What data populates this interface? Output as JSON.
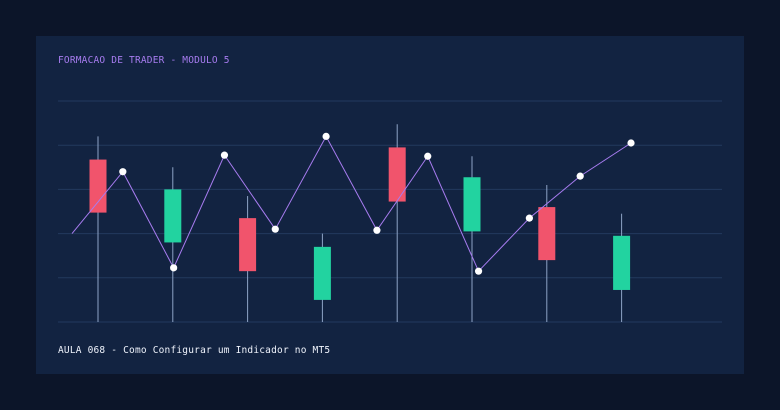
{
  "header": {
    "title": "FORMACAO DE TRADER - MODULO 5"
  },
  "footer": {
    "caption": "AULA 068 - Como Configurar um Indicador no MT5"
  },
  "colors": {
    "background": "#0c1529",
    "card": "#122341",
    "grid": "#233a5e",
    "wick": "#8ea3c6",
    "bullish": "#22d3a0",
    "bearish": "#f1546c",
    "indicator_line": "#a77cf0",
    "indicator_point": "#ffffff",
    "header_text": "#a77cf0",
    "footer_text": "#eef2fb"
  },
  "chart_data": {
    "type": "candlestick",
    "grid": true,
    "gridlines": 6,
    "ylim": [
      0,
      10
    ],
    "candles": [
      {
        "direction": "bearish",
        "open": 7.35,
        "close": 4.95,
        "high": 8.4,
        "low": 0.0
      },
      {
        "direction": "bullish",
        "open": 3.6,
        "close": 6.0,
        "high": 7.0,
        "low": 0.0
      },
      {
        "direction": "bearish",
        "open": 4.7,
        "close": 2.3,
        "high": 5.7,
        "low": 0.0
      },
      {
        "direction": "bullish",
        "open": 1.0,
        "close": 3.4,
        "high": 4.0,
        "low": 0.0
      },
      {
        "direction": "bearish",
        "open": 7.9,
        "close": 5.45,
        "high": 8.95,
        "low": 0.0
      },
      {
        "direction": "bullish",
        "open": 4.1,
        "close": 6.55,
        "high": 7.5,
        "low": 0.0
      },
      {
        "direction": "bearish",
        "open": 5.2,
        "close": 2.8,
        "high": 6.2,
        "low": 0.0
      },
      {
        "direction": "bullish",
        "open": 1.45,
        "close": 3.9,
        "high": 4.9,
        "low": 0.0
      }
    ],
    "indicator": {
      "type": "line",
      "values": [
        4.0,
        6.8,
        2.45,
        7.55,
        4.2,
        8.4,
        4.15,
        7.5,
        2.3,
        4.7,
        6.6,
        8.1
      ],
      "point_marked": [
        false,
        true,
        true,
        true,
        true,
        true,
        true,
        true,
        true,
        true,
        true,
        true
      ]
    }
  }
}
